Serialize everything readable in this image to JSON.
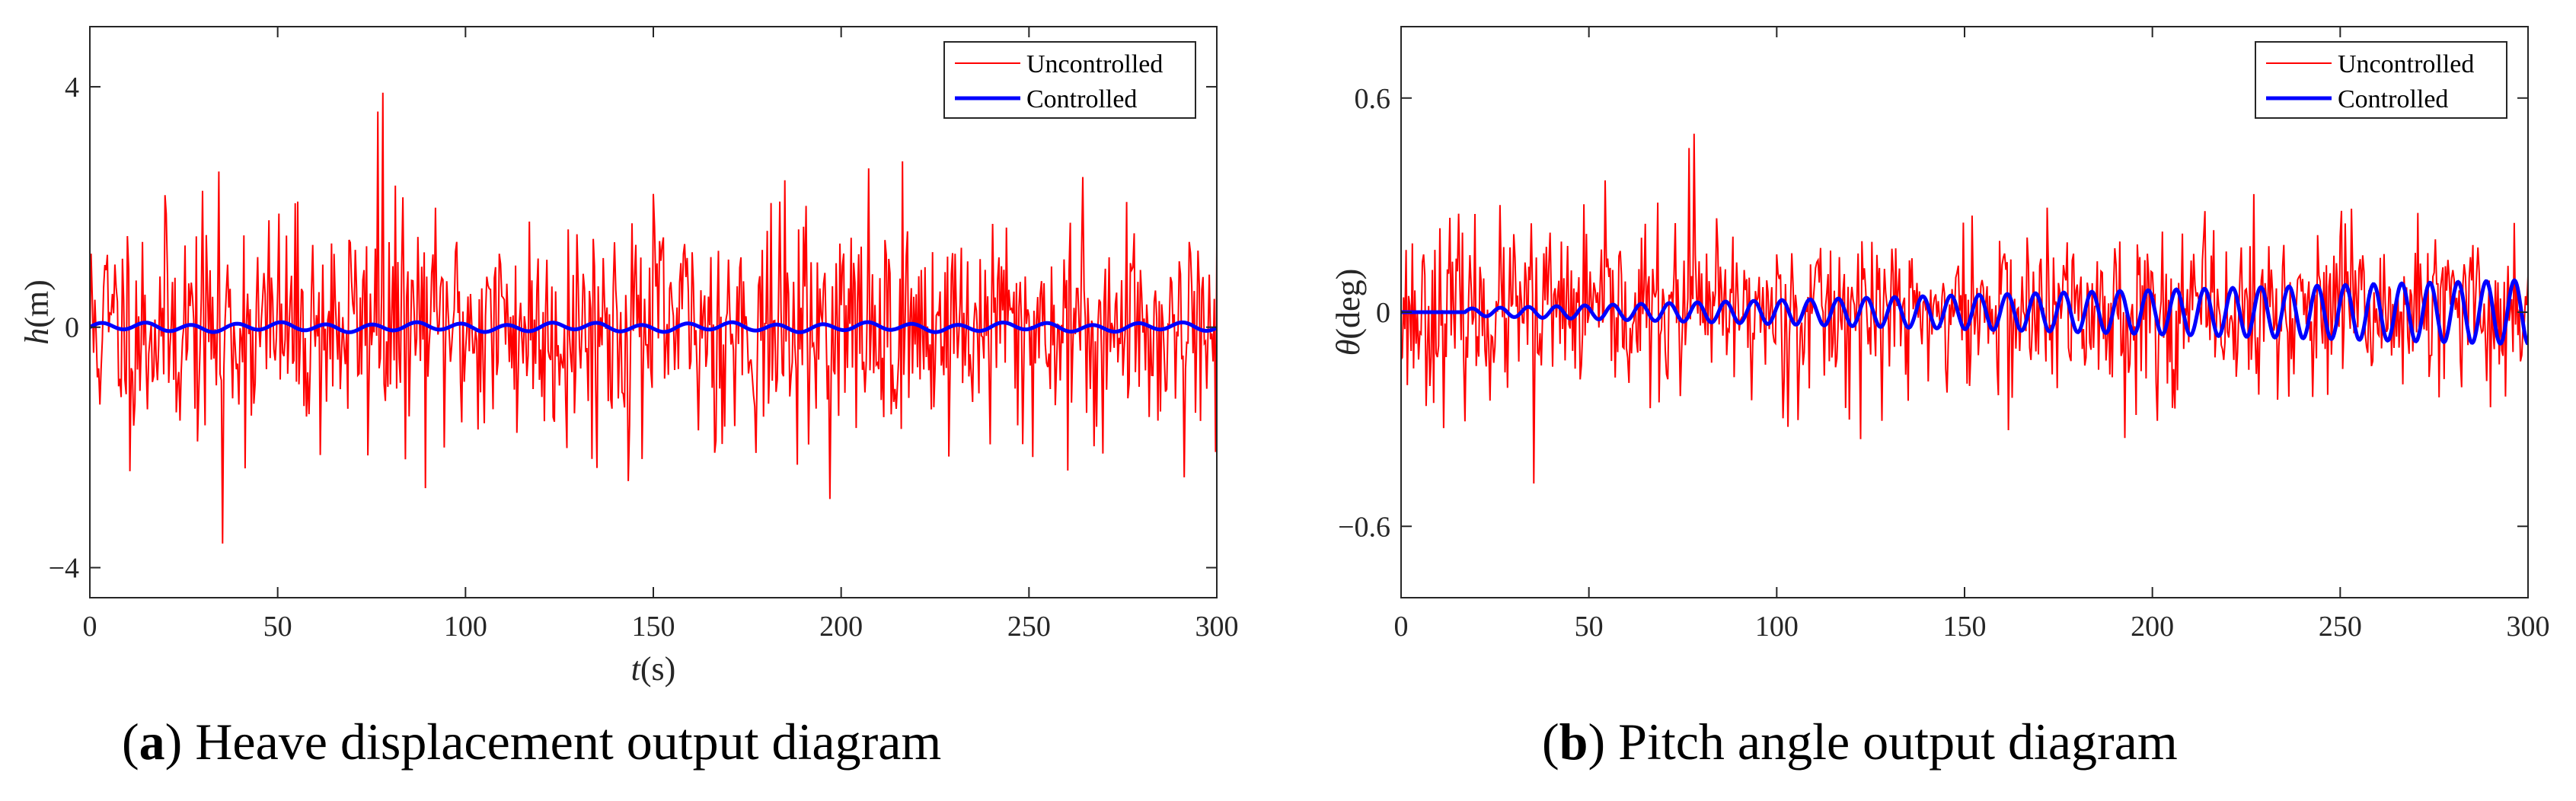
{
  "chart_data": [
    {
      "type": "line",
      "panel": "(a)",
      "caption_letter": "a",
      "caption_text": "Heave displacement output diagram",
      "xlabel_italic": "t",
      "xlabel_unit": "(s)",
      "ylabel_italic": "h",
      "ylabel_unit": "(m)",
      "xlim": [
        0,
        300
      ],
      "ylim": [
        -4.5,
        5
      ],
      "xticks": [
        0,
        50,
        100,
        150,
        200,
        250,
        300
      ],
      "xtick_labels": [
        "0",
        "50",
        "100",
        "150",
        "200",
        "250",
        "300"
      ],
      "yticks": [
        -4,
        0,
        4
      ],
      "ytick_labels": [
        "−4",
        "0",
        "4"
      ],
      "legend": [
        "Uncontrolled",
        "Controlled"
      ],
      "legend_position": "top-right",
      "grid": false,
      "series": [
        {
          "name": "Uncontrolled",
          "color": "#ff0000",
          "kind": "random noise",
          "std": 0.95,
          "peak_max": 3.9,
          "peak_min": -3.6,
          "samples": 900,
          "seed": 11
        },
        {
          "name": "Controlled",
          "color": "#0000ff",
          "kind": "sinusoid",
          "amplitude": 0.06,
          "period": 12,
          "growth": 0
        }
      ]
    },
    {
      "type": "line",
      "panel": "(b)",
      "caption_letter": "b",
      "caption_text": "Pitch angle output diagram",
      "xlabel_italic": "",
      "xlabel_unit": "",
      "ylabel_italic": "θ",
      "ylabel_unit": "(deg)",
      "xlim": [
        0,
        300
      ],
      "ylim": [
        -0.8,
        0.8
      ],
      "xticks": [
        0,
        50,
        100,
        150,
        200,
        250,
        300
      ],
      "xtick_labels": [
        "0",
        "50",
        "100",
        "150",
        "200",
        "250",
        "300"
      ],
      "yticks": [
        -0.6,
        0,
        0.6
      ],
      "ytick_labels": [
        "−0.6",
        "0",
        "0.6"
      ],
      "legend": [
        "Uncontrolled",
        "Controlled"
      ],
      "legend_position": "top-right",
      "grid": false,
      "series": [
        {
          "name": "Uncontrolled",
          "color": "#ff0000",
          "kind": "random noise",
          "std": 0.12,
          "peak_max": 0.5,
          "peak_min": -0.48,
          "samples": 900,
          "seed": 23
        },
        {
          "name": "Controlled",
          "color": "#0000ff",
          "kind": "growing sinusoid",
          "amplitude": 0.01,
          "amplitude_end": 0.09,
          "period": 7.5,
          "start": 17
        }
      ]
    }
  ]
}
